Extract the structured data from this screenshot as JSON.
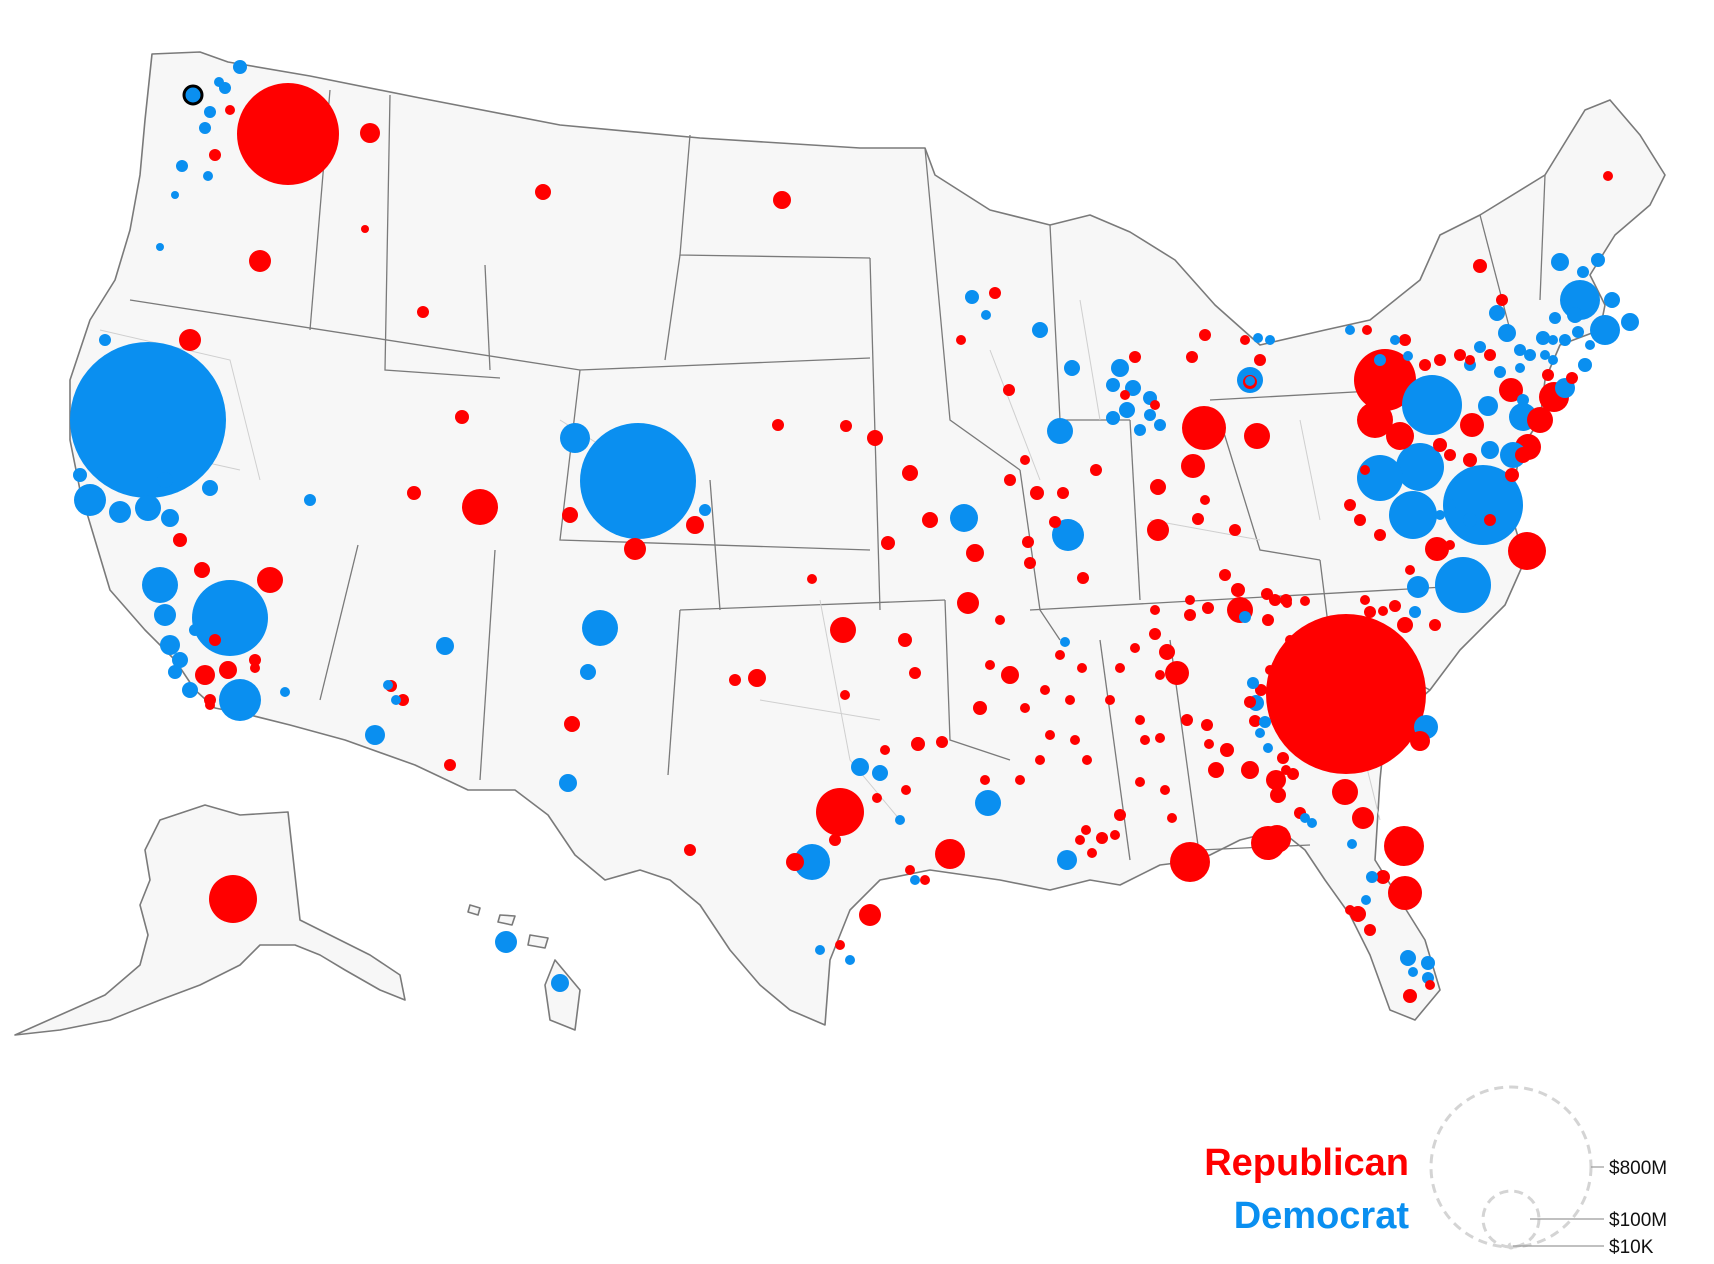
{
  "legend": {
    "parties": [
      {
        "key": "republican",
        "label": "Republican",
        "color": "#ff0000"
      },
      {
        "key": "democrat",
        "label": "Democrat",
        "color": "#0a8ff0"
      }
    ],
    "size_scale": [
      {
        "label": "$800M",
        "amount": 800000000
      },
      {
        "label": "$100M",
        "amount": 100000000
      },
      {
        "label": "$10K",
        "amount": 10000
      }
    ]
  },
  "map": {
    "subject": "campaign contributions by congressional district",
    "highlighted_district": "WA district near Puget Sound"
  }
}
